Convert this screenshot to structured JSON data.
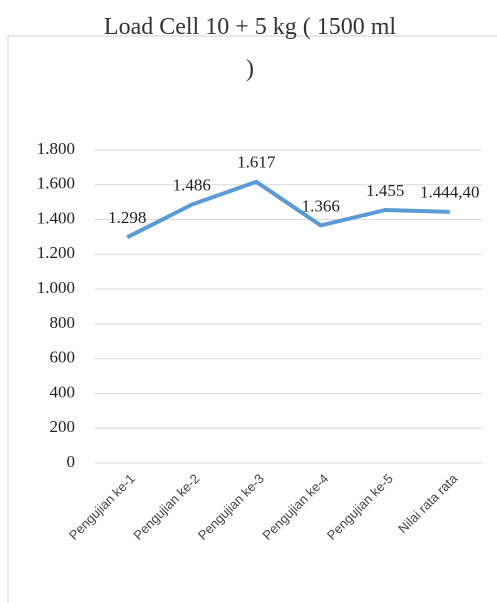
{
  "chart_data": {
    "type": "line",
    "title": "Load Cell 10 + 5 kg ( 1500 ml )",
    "categories": [
      "Pengujian ke-1",
      "Pengujian ke-2",
      "Pengujian ke-3",
      "Pengujian ke-4",
      "Pengujian ke-5",
      "Nilai rata rata"
    ],
    "series": [
      {
        "color": "#5b9bd5",
        "values": [
          1298,
          1486,
          1617,
          1366,
          1455,
          1444.4
        ],
        "value_labels": [
          "1.298",
          "1.486",
          "1.617",
          "1.366",
          "1.455",
          "1.444,40"
        ]
      }
    ],
    "ylim": [
      0,
      1800
    ],
    "yticks": [
      0,
      200,
      400,
      600,
      800,
      {
        "value": 1000,
        "label": "1.000"
      },
      {
        "value": 1200,
        "label": "1.200"
      },
      {
        "value": 1400,
        "label": "1.400"
      },
      {
        "value": 1600,
        "label": "1.600"
      },
      {
        "value": 1800,
        "label": "1.800"
      }
    ],
    "grid": true
  }
}
